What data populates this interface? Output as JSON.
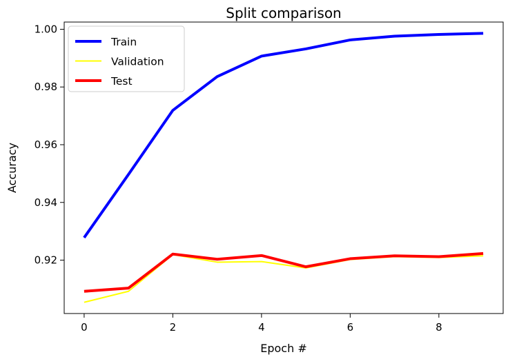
{
  "chart_data": {
    "type": "line",
    "title": "Split comparison",
    "xlabel": "Epoch #",
    "ylabel": "Accuracy",
    "x": [
      0,
      1,
      2,
      3,
      4,
      5,
      6,
      7,
      8,
      9
    ],
    "xlim": [
      -0.45,
      9.45
    ],
    "ylim": [
      0.9015,
      1.0025
    ],
    "xticks": [
      0,
      2,
      4,
      6,
      8
    ],
    "xtick_labels": [
      "0",
      "2",
      "4",
      "6",
      "8"
    ],
    "yticks": [
      0.92,
      0.94,
      0.96,
      0.98,
      1.0
    ],
    "ytick_labels": [
      "0.92",
      "0.94",
      "0.96",
      "0.98",
      "1.00"
    ],
    "grid": false,
    "legend_position": "top-left",
    "series": [
      {
        "name": "Train",
        "color": "#0000ff",
        "width": "thick",
        "values": [
          0.9278,
          0.9497,
          0.9719,
          0.9836,
          0.9907,
          0.9932,
          0.9963,
          0.9976,
          0.9982,
          0.9986
        ]
      },
      {
        "name": "Validation",
        "color": "#ffff00",
        "width": "thin",
        "values": [
          0.9054,
          0.9092,
          0.9219,
          0.9193,
          0.9195,
          0.9173,
          0.9202,
          0.9212,
          0.9209,
          0.9215
        ]
      },
      {
        "name": "Test",
        "color": "#ff0000",
        "width": "thick",
        "values": [
          0.9092,
          0.9103,
          0.9221,
          0.9203,
          0.9216,
          0.9177,
          0.9205,
          0.9215,
          0.9212,
          0.9223
        ]
      }
    ]
  }
}
